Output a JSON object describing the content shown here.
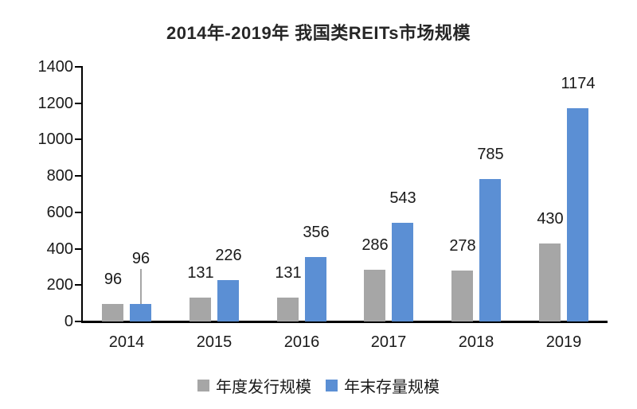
{
  "title": "2014年-2019年 我国类REITs市场规模",
  "chart_data": {
    "type": "bar",
    "title": "2014年-2019年 我国类REITs市场规模",
    "categories": [
      "2014",
      "2015",
      "2016",
      "2017",
      "2018",
      "2019"
    ],
    "series": [
      {
        "name": "年度发行规模",
        "color": "#a6a6a6",
        "values": [
          96,
          131,
          131,
          286,
          278,
          430
        ]
      },
      {
        "name": "年末存量规模",
        "color": "#5b8fd4",
        "values": [
          96,
          226,
          356,
          543,
          785,
          1174
        ]
      }
    ],
    "xlabel": "",
    "ylabel": "",
    "ylim": [
      0,
      1400
    ],
    "yticks": [
      0,
      200,
      400,
      600,
      800,
      1000,
      1200,
      1400
    ],
    "grid": false,
    "legend_position": "bottom",
    "data_labels": true,
    "leader_lines": [
      {
        "series_index": 1,
        "point_index": 0
      }
    ],
    "axis_color": "#000000",
    "text_color": "#1a1a1a"
  }
}
